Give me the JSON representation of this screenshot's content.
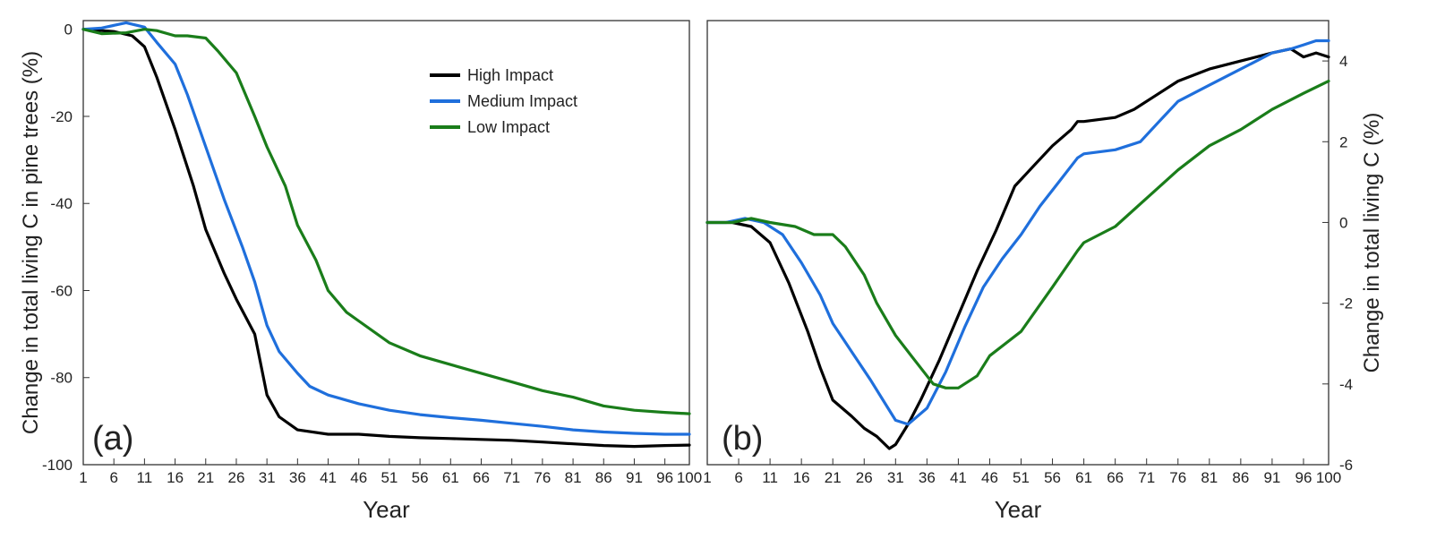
{
  "chart_data": [
    {
      "type": "line",
      "panel_label": "(a)",
      "xlabel": "Year",
      "ylabel": "Change in total living C in pine trees (%)",
      "xlim": [
        1,
        100
      ],
      "ylim": [
        -100,
        2
      ],
      "xticks": [
        1,
        6,
        11,
        16,
        21,
        26,
        31,
        36,
        41,
        46,
        51,
        56,
        61,
        66,
        71,
        76,
        81,
        86,
        91,
        96,
        100
      ],
      "yticks": [
        0,
        -20,
        -40,
        -60,
        -80,
        -100
      ],
      "legend": {
        "position": "top-right"
      },
      "series": [
        {
          "name": "High Impact",
          "color": "#000000",
          "x": [
            1,
            6,
            9,
            11,
            13,
            16,
            19,
            21,
            24,
            26,
            29,
            31,
            33,
            36,
            41,
            46,
            51,
            56,
            61,
            66,
            71,
            76,
            81,
            86,
            91,
            96,
            100
          ],
          "y": [
            0,
            -0.5,
            -1.5,
            -4,
            -11,
            -23,
            -36,
            -46,
            -56,
            -62,
            -70,
            -84,
            -89,
            -92,
            -93,
            -93,
            -93.5,
            -93.8,
            -94,
            -94.2,
            -94.4,
            -94.8,
            -95.2,
            -95.6,
            -95.8,
            -95.6,
            -95.5
          ]
        },
        {
          "name": "Medium Impact",
          "color": "#1f6fdc",
          "x": [
            1,
            4,
            8,
            11,
            13,
            16,
            18,
            21,
            24,
            27,
            29,
            31,
            33,
            36,
            38,
            41,
            46,
            51,
            56,
            61,
            66,
            71,
            76,
            81,
            86,
            91,
            96,
            100
          ],
          "y": [
            0,
            0.3,
            1.5,
            0.5,
            -3,
            -8,
            -15,
            -27,
            -39,
            -50,
            -58,
            -68,
            -74,
            -79,
            -82,
            -84,
            -86,
            -87.5,
            -88.5,
            -89.2,
            -89.8,
            -90.5,
            -91.2,
            -92,
            -92.5,
            -92.8,
            -93,
            -93
          ]
        },
        {
          "name": "Low Impact",
          "color": "#1a7d1a",
          "x": [
            1,
            4,
            8,
            11,
            13,
            16,
            18,
            21,
            23,
            26,
            29,
            31,
            34,
            36,
            39,
            41,
            44,
            46,
            51,
            56,
            61,
            66,
            71,
            76,
            81,
            86,
            91,
            96,
            100
          ],
          "y": [
            0,
            -1,
            -0.8,
            0,
            -0.3,
            -1.5,
            -1.5,
            -2,
            -5,
            -10,
            -20,
            -27,
            -36,
            -45,
            -53,
            -60,
            -65,
            -67,
            -72,
            -75,
            -77,
            -79,
            -81,
            -83,
            -84.5,
            -86.5,
            -87.5,
            -88,
            -88.3
          ]
        }
      ]
    },
    {
      "type": "line",
      "panel_label": "(b)",
      "xlabel": "Year",
      "ylabel": "Change in total living C (%)",
      "xlim": [
        1,
        100
      ],
      "ylim": [
        -6,
        5
      ],
      "xticks": [
        1,
        6,
        11,
        16,
        21,
        26,
        31,
        36,
        41,
        46,
        51,
        56,
        61,
        66,
        71,
        76,
        81,
        86,
        91,
        96,
        100
      ],
      "yticks": [
        4,
        2,
        0,
        -2,
        -4,
        -6
      ],
      "series": [
        {
          "name": "High Impact",
          "color": "#000000",
          "x": [
            1,
            5,
            8,
            11,
            14,
            17,
            19,
            21,
            24,
            26,
            28,
            30,
            31,
            33,
            35,
            38,
            41,
            44,
            47,
            50,
            53,
            56,
            59,
            60,
            61,
            66,
            69,
            72,
            76,
            81,
            86,
            91,
            94,
            96,
            98,
            100
          ],
          "y": [
            0,
            0,
            -0.1,
            -0.5,
            -1.5,
            -2.7,
            -3.6,
            -4.4,
            -4.8,
            -5.1,
            -5.3,
            -5.6,
            -5.5,
            -5.0,
            -4.4,
            -3.4,
            -2.3,
            -1.2,
            -0.2,
            0.9,
            1.4,
            1.9,
            2.3,
            2.5,
            2.5,
            2.6,
            2.8,
            3.1,
            3.5,
            3.8,
            4.0,
            4.2,
            4.3,
            4.1,
            4.2,
            4.1
          ]
        },
        {
          "name": "Medium Impact",
          "color": "#1f6fdc",
          "x": [
            1,
            4,
            7,
            10,
            13,
            16,
            19,
            21,
            24,
            27,
            29,
            31,
            33,
            36,
            39,
            42,
            45,
            48,
            51,
            54,
            57,
            60,
            61,
            66,
            70,
            73,
            76,
            81,
            86,
            91,
            94,
            96,
            98,
            100
          ],
          "y": [
            0,
            0,
            0.1,
            0,
            -0.3,
            -1.0,
            -1.8,
            -2.5,
            -3.2,
            -3.9,
            -4.4,
            -4.9,
            -5.0,
            -4.6,
            -3.7,
            -2.6,
            -1.6,
            -0.9,
            -0.3,
            0.4,
            1.0,
            1.6,
            1.7,
            1.8,
            2.0,
            2.5,
            3.0,
            3.4,
            3.8,
            4.2,
            4.3,
            4.4,
            4.5,
            4.5
          ]
        },
        {
          "name": "Low Impact",
          "color": "#1a7d1a",
          "x": [
            1,
            5,
            8,
            11,
            15,
            18,
            21,
            23,
            26,
            28,
            31,
            34,
            37,
            39,
            41,
            44,
            46,
            51,
            56,
            60,
            61,
            66,
            71,
            76,
            81,
            86,
            91,
            96,
            100
          ],
          "y": [
            0,
            0,
            0.1,
            0,
            -0.1,
            -0.3,
            -0.3,
            -0.6,
            -1.3,
            -2.0,
            -2.8,
            -3.4,
            -4.0,
            -4.1,
            -4.1,
            -3.8,
            -3.3,
            -2.7,
            -1.6,
            -0.7,
            -0.5,
            -0.1,
            0.6,
            1.3,
            1.9,
            2.3,
            2.8,
            3.2,
            3.5
          ]
        }
      ]
    }
  ]
}
